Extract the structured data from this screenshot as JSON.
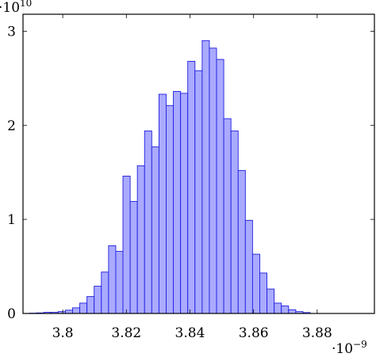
{
  "chart_data": {
    "type": "bar",
    "title": "",
    "xlabel": "",
    "ylabel": "",
    "x_multiplier": {
      "base": "·10",
      "exponent": "−9"
    },
    "y_multiplier": {
      "base": "·10",
      "exponent": "10"
    },
    "xlim": [
      3.7875e-09,
      3.898e-09
    ],
    "ylim": [
      0,
      31800000000.0
    ],
    "x_ticks": [
      {
        "value": 3.8e-09,
        "label": "3.8"
      },
      {
        "value": 3.82e-09,
        "label": "3.82"
      },
      {
        "value": 3.84e-09,
        "label": "3.84"
      },
      {
        "value": 3.86e-09,
        "label": "3.86"
      },
      {
        "value": 3.88e-09,
        "label": "3.88"
      }
    ],
    "y_ticks": [
      {
        "value": 0,
        "label": "0"
      },
      {
        "value": 10000000000.0,
        "label": "1"
      },
      {
        "value": 20000000000.0,
        "label": "2"
      },
      {
        "value": 30000000000.0,
        "label": "3"
      }
    ],
    "bins": {
      "start": 3.7895e-09,
      "width": 2.264e-12,
      "values": [
        30000000.0,
        60000000.0,
        120000000.0,
        120000000.0,
        200000000.0,
        350000000.0,
        600000000.0,
        1100000000.0,
        1800000000.0,
        2900000000.0,
        4400000000.0,
        7200000000.0,
        6600000000.0,
        14600000000.0,
        11900000000.0,
        15700000000.0,
        19400000000.0,
        17700000000.0,
        23300000000.0,
        22100000000.0,
        23600000000.0,
        23400000000.0,
        26800000000.0,
        25800000000.0,
        29000000000.0,
        28200000000.0,
        27000000000.0,
        20700000000.0,
        19400000000.0,
        15200000000.0,
        9900000000.0,
        6300000000.0,
        4300000000.0,
        2600000000.0,
        1100000000.0,
        800000000.0,
        400000000.0,
        200000000.0,
        100000000.0
      ]
    },
    "colors": {
      "bar_fill": "#aaaaff",
      "bar_stroke": "#1f1fe0",
      "axis": "#000000"
    },
    "grid": false
  }
}
